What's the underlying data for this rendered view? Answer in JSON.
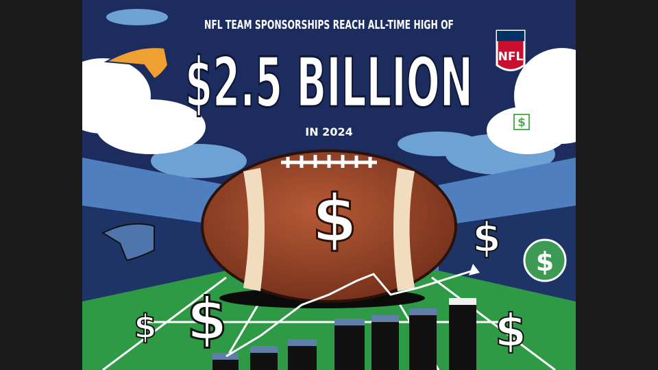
{
  "header": {
    "kicker": "NFL TEAM SPONSORSHIPS REACH ALL-TIME HIGH OF",
    "headline": "$2.5 BILLION",
    "subline": "IN 2024"
  },
  "logo": {
    "text": "NFL"
  },
  "symbols": [
    "$",
    "$",
    "$",
    "$",
    "$",
    "$",
    "$"
  ]
}
